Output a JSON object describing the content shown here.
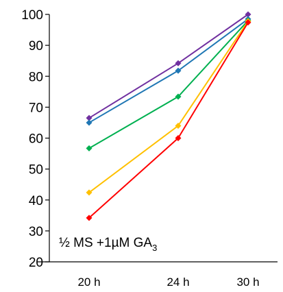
{
  "chart_data": {
    "type": "line",
    "title": "",
    "xlabel": "",
    "ylabel": "",
    "x": [
      "20 h",
      "24 h",
      "30 h"
    ],
    "ylim": [
      20,
      100
    ],
    "yticks": [
      20,
      30,
      40,
      50,
      60,
      70,
      80,
      90,
      100
    ],
    "grid": false,
    "legend": "none",
    "annotation": {
      "main": "½ MS +1µM GA",
      "subscript": "3"
    },
    "series": [
      {
        "color": "#7030A0",
        "values": [
          66.5,
          84.2,
          100
        ]
      },
      {
        "color": "#1F77B4",
        "values": [
          65,
          81.8,
          98.5
        ]
      },
      {
        "color": "#00B050",
        "values": [
          56.7,
          73.4,
          98
        ]
      },
      {
        "color": "#FFC000",
        "values": [
          42.4,
          64,
          97.8
        ]
      },
      {
        "color": "#FF0000",
        "values": [
          34.2,
          60,
          97.4
        ]
      }
    ]
  }
}
